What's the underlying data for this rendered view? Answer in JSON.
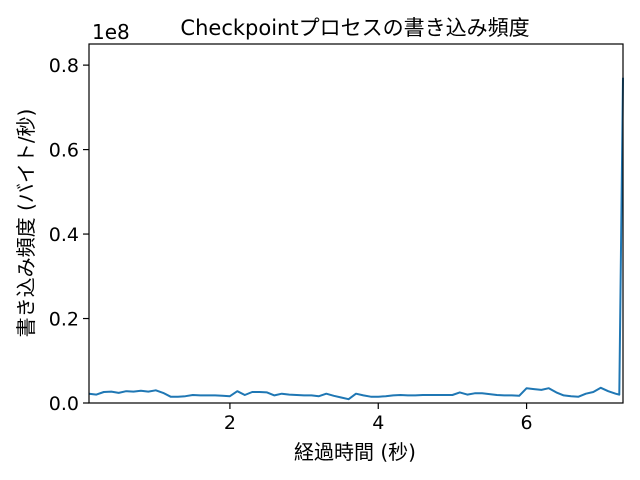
{
  "chart_data": {
    "type": "line",
    "title": "Checkpointプロセスの書き込み頻度",
    "xlabel": "経過時間 (秒)",
    "ylabel": "書き込み頻度 (バイト/秒)",
    "y_offset_label": "1e8",
    "xlim": [
      0.1,
      7.3
    ],
    "ylim": [
      0,
      0.85
    ],
    "y_scale_note": "values in units of 1e8",
    "xticks": [
      2,
      4,
      6
    ],
    "xtick_labels": [
      "2",
      "4",
      "6"
    ],
    "yticks": [
      0.0,
      0.2,
      0.4,
      0.6,
      0.8
    ],
    "ytick_labels": [
      "0.0",
      "0.2",
      "0.4",
      "0.6",
      "0.8"
    ],
    "grid": false,
    "series": [
      {
        "color": "#1f77b4",
        "x": [
          0.1,
          0.2,
          0.3,
          0.4,
          0.5,
          0.6,
          0.7,
          0.8,
          0.9,
          1.0,
          1.1,
          1.2,
          1.3,
          1.4,
          1.5,
          1.6,
          1.7,
          1.8,
          1.9,
          2.0,
          2.1,
          2.2,
          2.3,
          2.4,
          2.5,
          2.6,
          2.7,
          2.8,
          2.9,
          3.0,
          3.1,
          3.2,
          3.3,
          3.4,
          3.5,
          3.6,
          3.7,
          3.8,
          3.9,
          4.0,
          4.1,
          4.2,
          4.3,
          4.4,
          4.5,
          4.6,
          4.7,
          4.8,
          4.9,
          5.0,
          5.1,
          5.2,
          5.3,
          5.4,
          5.5,
          5.6,
          5.7,
          5.8,
          5.9,
          6.0,
          6.1,
          6.2,
          6.3,
          6.4,
          6.5,
          6.6,
          6.7,
          6.8,
          6.9,
          7.0,
          7.1,
          7.2,
          7.25,
          7.3
        ],
        "y": [
          0.022,
          0.02,
          0.026,
          0.027,
          0.024,
          0.028,
          0.027,
          0.029,
          0.027,
          0.03,
          0.024,
          0.015,
          0.015,
          0.016,
          0.019,
          0.018,
          0.018,
          0.018,
          0.017,
          0.016,
          0.028,
          0.019,
          0.026,
          0.026,
          0.025,
          0.018,
          0.022,
          0.02,
          0.019,
          0.018,
          0.018,
          0.016,
          0.022,
          0.017,
          0.013,
          0.009,
          0.022,
          0.018,
          0.015,
          0.015,
          0.016,
          0.018,
          0.019,
          0.018,
          0.018,
          0.019,
          0.019,
          0.019,
          0.019,
          0.019,
          0.025,
          0.02,
          0.023,
          0.023,
          0.021,
          0.019,
          0.018,
          0.018,
          0.017,
          0.035,
          0.033,
          0.031,
          0.035,
          0.025,
          0.018,
          0.016,
          0.015,
          0.022,
          0.026,
          0.036,
          0.028,
          0.022,
          0.02,
          0.77
        ]
      }
    ]
  }
}
